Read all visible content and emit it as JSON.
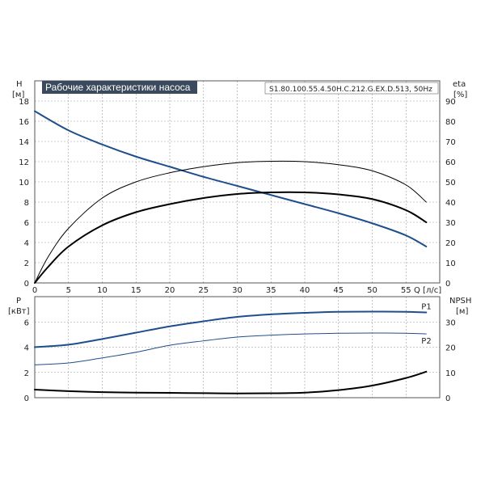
{
  "chart_data": [
    {
      "type": "line",
      "title": "Рабочие характеристики насоса",
      "model_label": "S1.80.100.55.4.50H.C.212.G.EX.D.513, 50Hz",
      "xlabel": "Q [л/с]",
      "ylabel_left": [
        "H",
        "[м]"
      ],
      "ylabel_right": [
        "eta",
        "[%]"
      ],
      "xlim": [
        0,
        60
      ],
      "ylim_left": [
        0,
        20
      ],
      "ylim_right": [
        0,
        100
      ],
      "x_ticks": [
        0,
        5,
        10,
        15,
        20,
        25,
        30,
        35,
        40,
        45,
        50,
        55
      ],
      "y_ticks_left": [
        0,
        2,
        4,
        6,
        8,
        10,
        12,
        14,
        16,
        18
      ],
      "y_ticks_right": [
        0,
        10,
        20,
        30,
        40,
        50,
        60,
        70,
        80,
        90
      ],
      "grid": true,
      "series": [
        {
          "axis": "left",
          "color": "#1f4e8c",
          "width": 2,
          "points": [
            [
              0,
              17.0
            ],
            [
              5,
              15.1
            ],
            [
              10,
              13.7
            ],
            [
              15,
              12.5
            ],
            [
              20,
              11.5
            ],
            [
              25,
              10.5
            ],
            [
              30,
              9.6
            ],
            [
              35,
              8.7
            ],
            [
              40,
              7.8
            ],
            [
              45,
              6.9
            ],
            [
              50,
              5.9
            ],
            [
              55,
              4.7
            ],
            [
              58,
              3.6
            ]
          ]
        },
        {
          "axis": "right",
          "color": "#000000",
          "width": 1,
          "points": [
            [
              0,
              0
            ],
            [
              2,
              13
            ],
            [
              5,
              27
            ],
            [
              10,
              42
            ],
            [
              15,
              50
            ],
            [
              20,
              54.5
            ],
            [
              25,
              57.5
            ],
            [
              30,
              59.5
            ],
            [
              35,
              60.2
            ],
            [
              40,
              60
            ],
            [
              45,
              58.5
            ],
            [
              50,
              55.5
            ],
            [
              55,
              48.5
            ],
            [
              58,
              40
            ]
          ]
        },
        {
          "axis": "right",
          "color": "#000000",
          "width": 2,
          "points": [
            [
              0,
              0
            ],
            [
              2,
              8
            ],
            [
              5,
              18
            ],
            [
              10,
              28.5
            ],
            [
              15,
              35
            ],
            [
              20,
              39
            ],
            [
              25,
              42
            ],
            [
              30,
              44
            ],
            [
              35,
              44.8
            ],
            [
              40,
              44.8
            ],
            [
              45,
              43.8
            ],
            [
              50,
              41.5
            ],
            [
              55,
              36
            ],
            [
              58,
              30
            ]
          ]
        }
      ]
    },
    {
      "type": "line",
      "xlim": [
        0,
        60
      ],
      "ylabel_left": [
        "P",
        "[кВт]"
      ],
      "ylabel_right": [
        "NPSH",
        "[м]"
      ],
      "ylim_left": [
        0,
        8
      ],
      "ylim_right": [
        0,
        40
      ],
      "y_ticks_left": [
        0,
        2,
        4,
        6
      ],
      "y_ticks_right": [
        0,
        10,
        20,
        30
      ],
      "grid": true,
      "series": [
        {
          "name": "P1",
          "axis": "left",
          "color": "#1f4e8c",
          "width": 2,
          "points": [
            [
              0,
              4.0
            ],
            [
              5,
              4.2
            ],
            [
              10,
              4.65
            ],
            [
              15,
              5.15
            ],
            [
              20,
              5.65
            ],
            [
              25,
              6.05
            ],
            [
              30,
              6.4
            ],
            [
              35,
              6.6
            ],
            [
              40,
              6.72
            ],
            [
              45,
              6.8
            ],
            [
              50,
              6.82
            ],
            [
              55,
              6.8
            ],
            [
              58,
              6.75
            ]
          ]
        },
        {
          "name": "P2",
          "axis": "left",
          "color": "#1f4e8c",
          "width": 1,
          "points": [
            [
              0,
              2.6
            ],
            [
              5,
              2.75
            ],
            [
              10,
              3.15
            ],
            [
              15,
              3.6
            ],
            [
              20,
              4.15
            ],
            [
              25,
              4.5
            ],
            [
              30,
              4.8
            ],
            [
              35,
              4.95
            ],
            [
              40,
              5.05
            ],
            [
              45,
              5.1
            ],
            [
              50,
              5.12
            ],
            [
              55,
              5.1
            ],
            [
              58,
              5.05
            ]
          ]
        },
        {
          "axis": "right",
          "color": "#000000",
          "width": 2,
          "points": [
            [
              0,
              3.2
            ],
            [
              5,
              2.6
            ],
            [
              10,
              2.2
            ],
            [
              15,
              2.0
            ],
            [
              20,
              1.9
            ],
            [
              25,
              1.8
            ],
            [
              30,
              1.7
            ],
            [
              35,
              1.75
            ],
            [
              40,
              2.0
            ],
            [
              45,
              3.0
            ],
            [
              50,
              4.8
            ],
            [
              55,
              7.8
            ],
            [
              58,
              10.3
            ]
          ]
        }
      ]
    }
  ]
}
